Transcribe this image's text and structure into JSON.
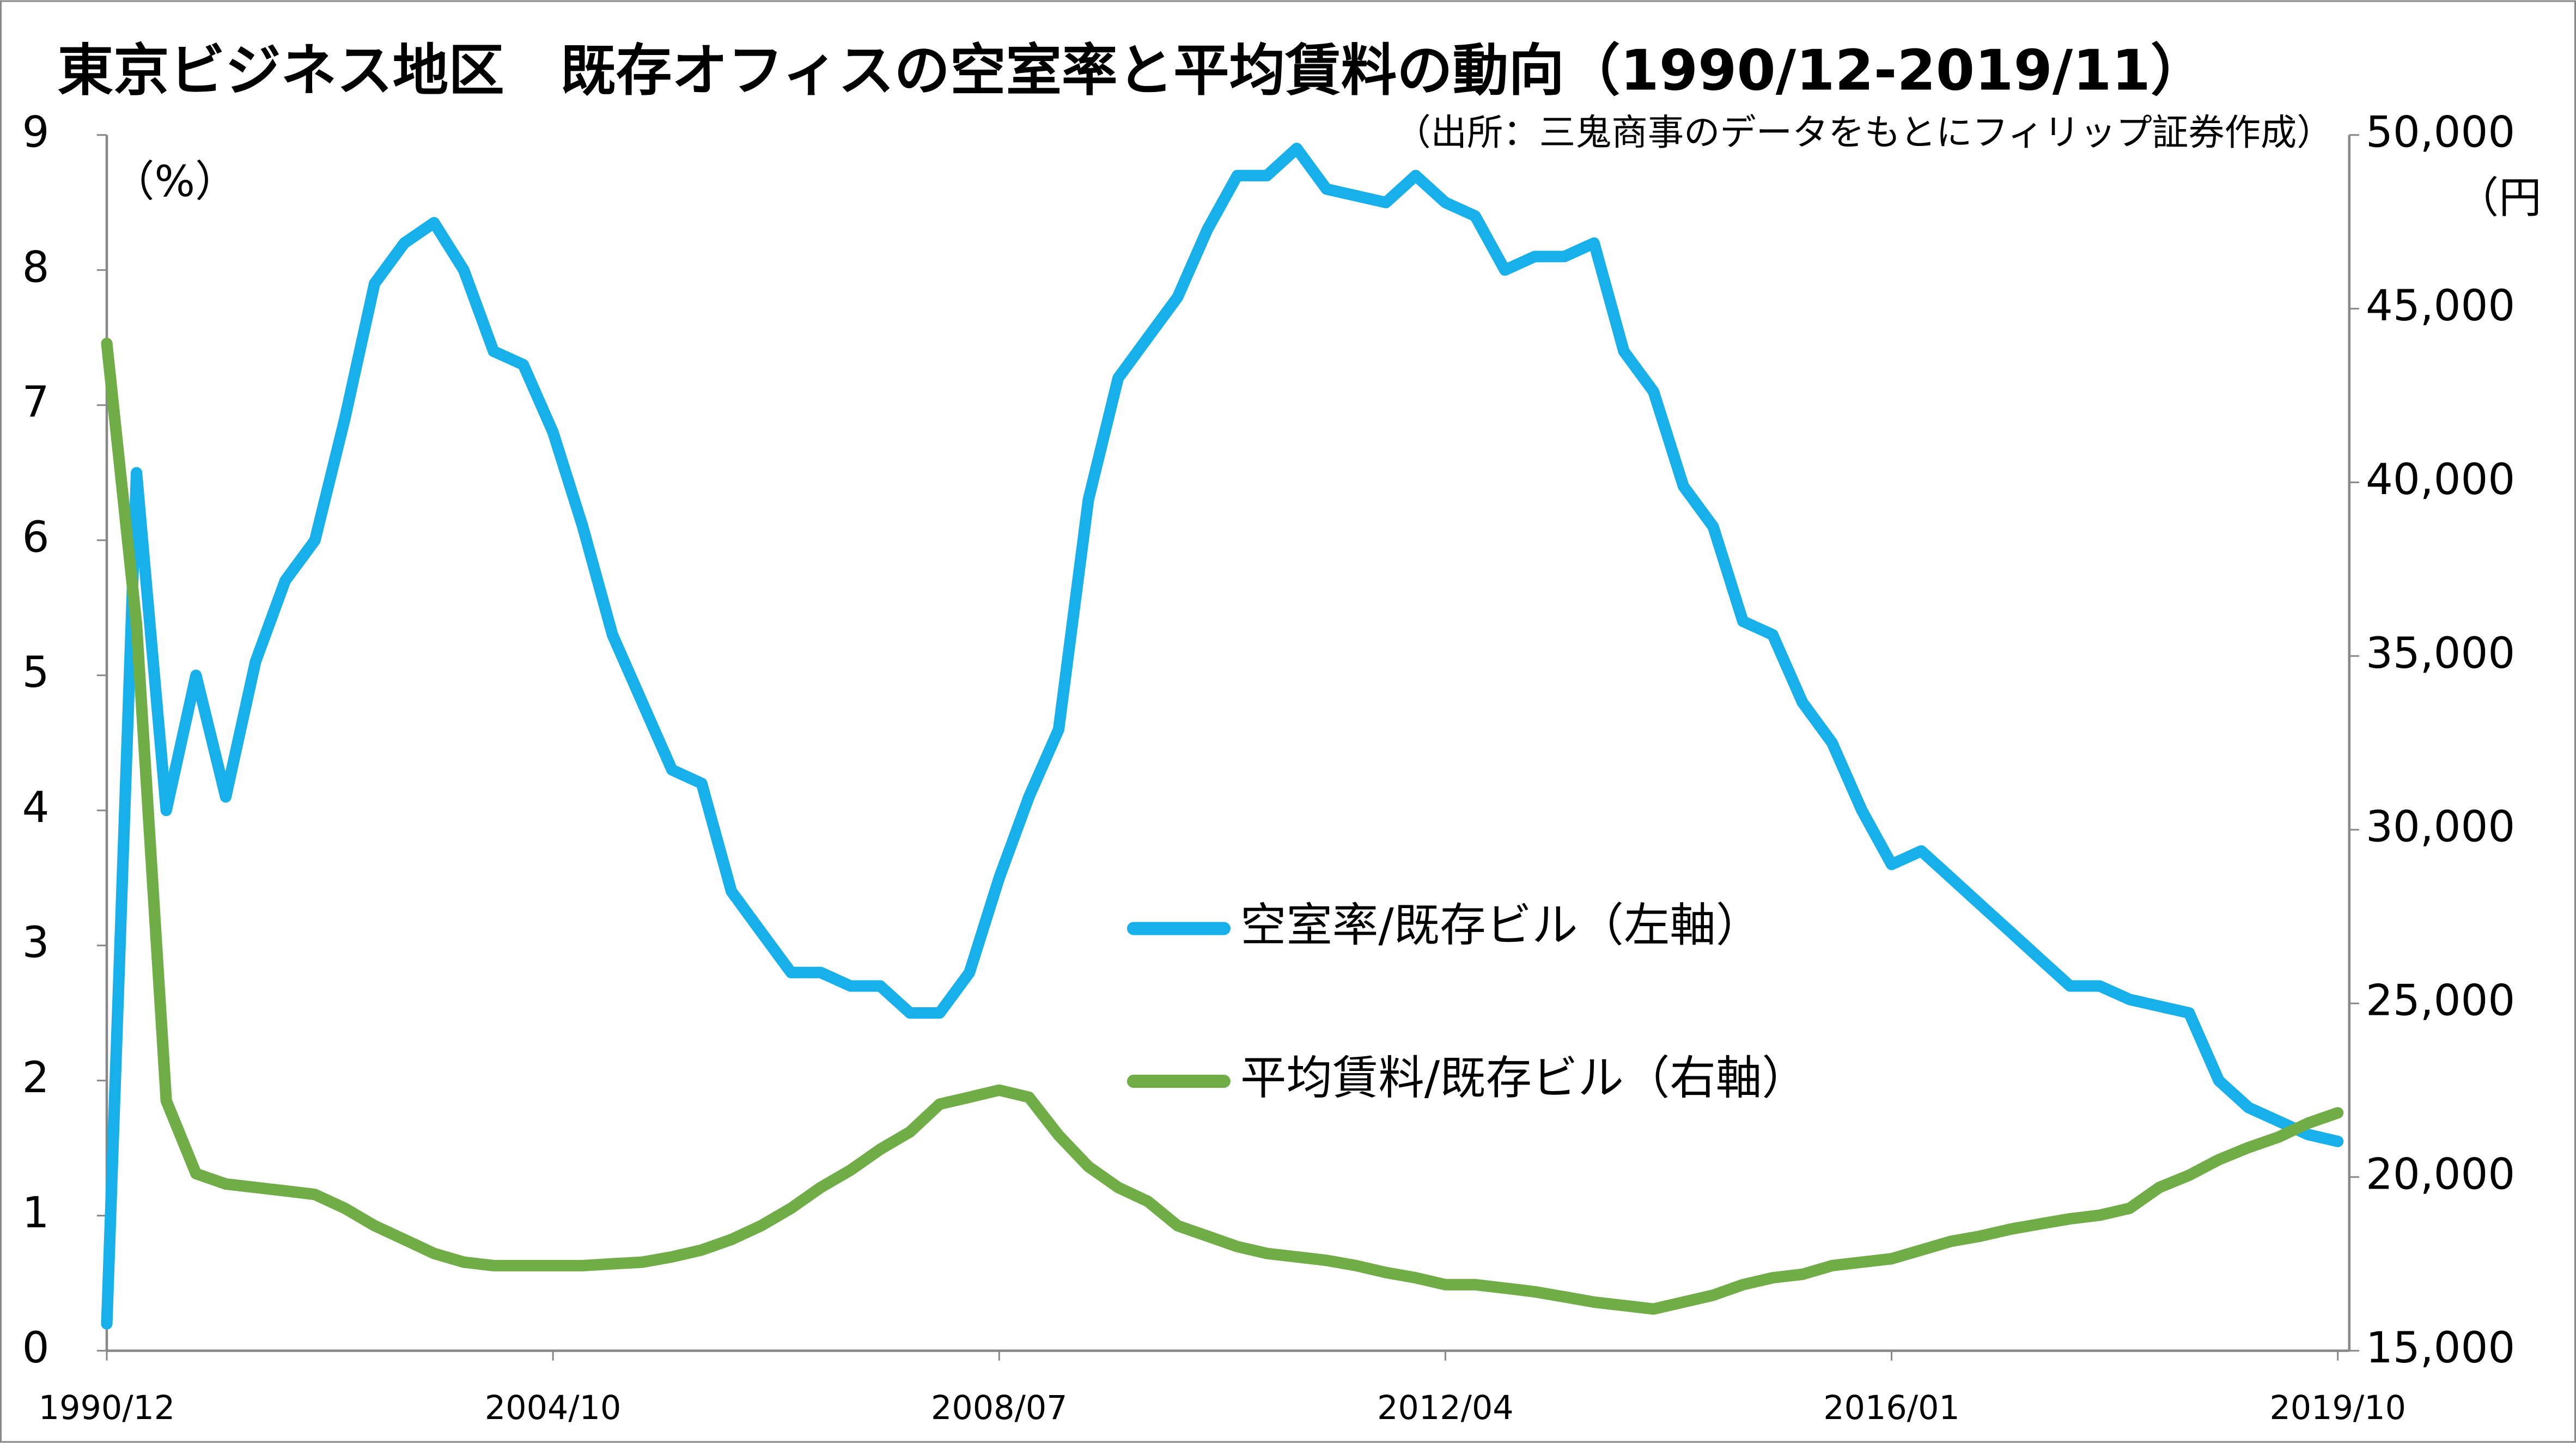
{
  "chart_data": {
    "type": "line",
    "title": "東京ビジネス地区　既存オフィスの空室率と平均賃料の動向（1990/12-2019/11）",
    "source": "（出所：三鬼商事のデータをもとにフィリップ証券作成）",
    "y_label": "（%）",
    "y2_label": "（円",
    "categories": [
      "1990/12",
      null,
      null,
      null,
      null,
      null,
      null,
      null,
      null,
      null,
      null,
      null,
      null,
      null,
      null,
      "2004/10",
      null,
      null,
      null,
      null,
      null,
      null,
      null,
      null,
      null,
      null,
      null,
      null,
      null,
      null,
      "2008/07",
      null,
      null,
      null,
      null,
      null,
      null,
      null,
      null,
      null,
      null,
      null,
      null,
      null,
      null,
      "2012/04",
      null,
      null,
      null,
      null,
      null,
      null,
      null,
      null,
      null,
      null,
      null,
      null,
      null,
      null,
      "2016/01",
      null,
      null,
      null,
      null,
      null,
      null,
      null,
      null,
      null,
      null,
      null,
      null,
      null,
      null,
      "2019/10"
    ],
    "series": [
      {
        "name": "空室率/既存ビル（左軸）",
        "color": "#17b0ea",
        "axis": "y",
        "values": [
          0.2,
          6.5,
          4.0,
          5.0,
          4.1,
          5.1,
          5.7,
          6.0,
          6.9,
          7.9,
          8.2,
          8.35,
          8.0,
          7.4,
          7.3,
          6.8,
          6.1,
          5.3,
          4.8,
          4.3,
          4.2,
          3.4,
          3.1,
          2.8,
          2.8,
          2.7,
          2.7,
          2.5,
          2.5,
          2.8,
          3.5,
          4.1,
          4.6,
          6.3,
          7.2,
          7.5,
          7.8,
          8.3,
          8.7,
          8.7,
          8.9,
          8.6,
          8.55,
          8.5,
          8.7,
          8.5,
          8.4,
          8.0,
          8.1,
          8.1,
          8.2,
          7.4,
          7.1,
          6.4,
          6.1,
          5.4,
          5.3,
          4.8,
          4.5,
          4.0,
          3.6,
          3.7,
          3.5,
          3.3,
          3.1,
          2.9,
          2.7,
          2.7,
          2.6,
          2.55,
          2.5,
          2.0,
          1.8,
          1.7,
          1.6,
          1.55
        ]
      },
      {
        "name": "平均賃料/既存ビル（右軸）",
        "color": "#70ad47",
        "axis": "y2",
        "values": [
          44000,
          35900,
          22200,
          20100,
          19800,
          19700,
          19600,
          19500,
          19100,
          18600,
          18200,
          17800,
          17550,
          17450,
          17450,
          17450,
          17450,
          17500,
          17550,
          17700,
          17900,
          18200,
          18600,
          19100,
          19700,
          20200,
          20800,
          21300,
          22100,
          22300,
          22500,
          22300,
          21200,
          20300,
          19700,
          19300,
          18600,
          18300,
          18000,
          17800,
          17700,
          17600,
          17450,
          17250,
          17100,
          16900,
          16900,
          16800,
          16700,
          16550,
          16400,
          16300,
          16200,
          16400,
          16600,
          16900,
          17100,
          17200,
          17450,
          17550,
          17650,
          17900,
          18150,
          18300,
          18500,
          18650,
          18800,
          18900,
          19100,
          19700,
          20050,
          20500,
          20850,
          21150,
          21550,
          21850
        ]
      }
    ],
    "ylim": [
      0,
      9
    ],
    "yticks": [
      0,
      1,
      2,
      3,
      4,
      5,
      6,
      7,
      8,
      9
    ],
    "y2lim": [
      15000,
      50000
    ],
    "y2ticks": [
      {
        "value": 15000,
        "label": "15,000"
      },
      {
        "value": 20000,
        "label": "20,000"
      },
      {
        "value": 25000,
        "label": "25,000"
      },
      {
        "value": 30000,
        "label": "30,000"
      },
      {
        "value": 35000,
        "label": "35,000"
      },
      {
        "value": 40000,
        "label": "40,000"
      },
      {
        "value": 45000,
        "label": "45,000"
      },
      {
        "value": 50000,
        "label": "50,000"
      }
    ],
    "grid": false,
    "legend": "center"
  }
}
